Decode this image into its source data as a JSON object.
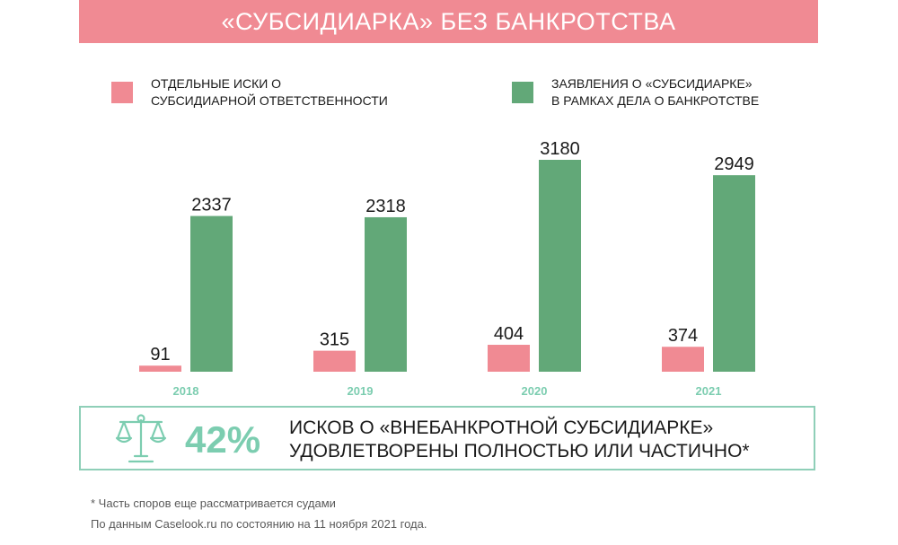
{
  "title": "«СУБСИДИАРКА» БЕЗ БАНКРОТСТВА",
  "legend": [
    {
      "line1": "ОТДЕЛЬНЫЕ ИСКИ О",
      "line2": "СУБСИДИАРНОЙ ОТВЕТСТВЕННОСТИ",
      "color": "#f08a93"
    },
    {
      "line1": "ЗАЯВЛЕНИЯ О «СУБСИДИАРКЕ»",
      "line2": "В РАМКАХ ДЕЛА О БАНКРОТСТВЕ",
      "color": "#62a878"
    }
  ],
  "chart_data": {
    "type": "bar",
    "categories": [
      "2018",
      "2019",
      "2020",
      "2021"
    ],
    "series": [
      {
        "name": "ОТДЕЛЬНЫЕ ИСКИ О СУБСИДИАРНОЙ ОТВЕТСТВЕННОСТИ",
        "values": [
          91,
          315,
          404,
          374
        ],
        "color": "#f08a93"
      },
      {
        "name": "ЗАЯВЛЕНИЯ О «СУБСИДИАРКЕ» В РАМКАХ ДЕЛА О БАНКРОТСТВЕ",
        "values": [
          2337,
          2318,
          3180,
          2949
        ],
        "color": "#62a878"
      }
    ],
    "ylim": [
      0,
      3180
    ],
    "grid": false,
    "legend_position": "top",
    "category_label_color": "#7ccdb0"
  },
  "callout": {
    "percent": "42%",
    "line1": "ИСКОВ О «ВНЕБАНКРОТНОЙ СУБСИДИАРКЕ»",
    "line2": "УДОВЛЕТВОРЕНЫ ПОЛНОСТЬЮ ИЛИ ЧАСТИЧНО*",
    "icon": "scales-icon",
    "accent_color": "#7ccdb0"
  },
  "footnotes": {
    "note": "* Часть споров еще рассматривается судами",
    "source": "По данным Caselook.ru по состоянию на 11 ноября 2021 года."
  }
}
